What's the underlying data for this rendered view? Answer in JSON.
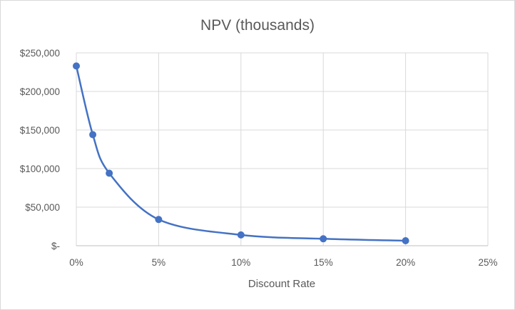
{
  "chart_data": {
    "type": "scatter",
    "title": "NPV (thousands)",
    "xlabel": "Discount Rate",
    "ylabel": "",
    "x_tick_labels": [
      "0%",
      "5%",
      "10%",
      "15%",
      "20%",
      "25%"
    ],
    "y_tick_labels": [
      "$-",
      "$50,000",
      "$100,000",
      "$150,000",
      "$200,000",
      "$250,000"
    ],
    "xlim": [
      0,
      25
    ],
    "ylim": [
      0,
      250000
    ],
    "x_ticks": [
      0,
      5,
      10,
      15,
      20,
      25
    ],
    "y_ticks": [
      0,
      50000,
      100000,
      150000,
      200000,
      250000
    ],
    "grid": true,
    "smooth_line": true,
    "series": [
      {
        "color": "#4472c4",
        "x": [
          0,
          1,
          2,
          5,
          10,
          15,
          20
        ],
        "y": [
          233000,
          144000,
          94000,
          34000,
          14000,
          9000,
          6500
        ]
      }
    ]
  }
}
